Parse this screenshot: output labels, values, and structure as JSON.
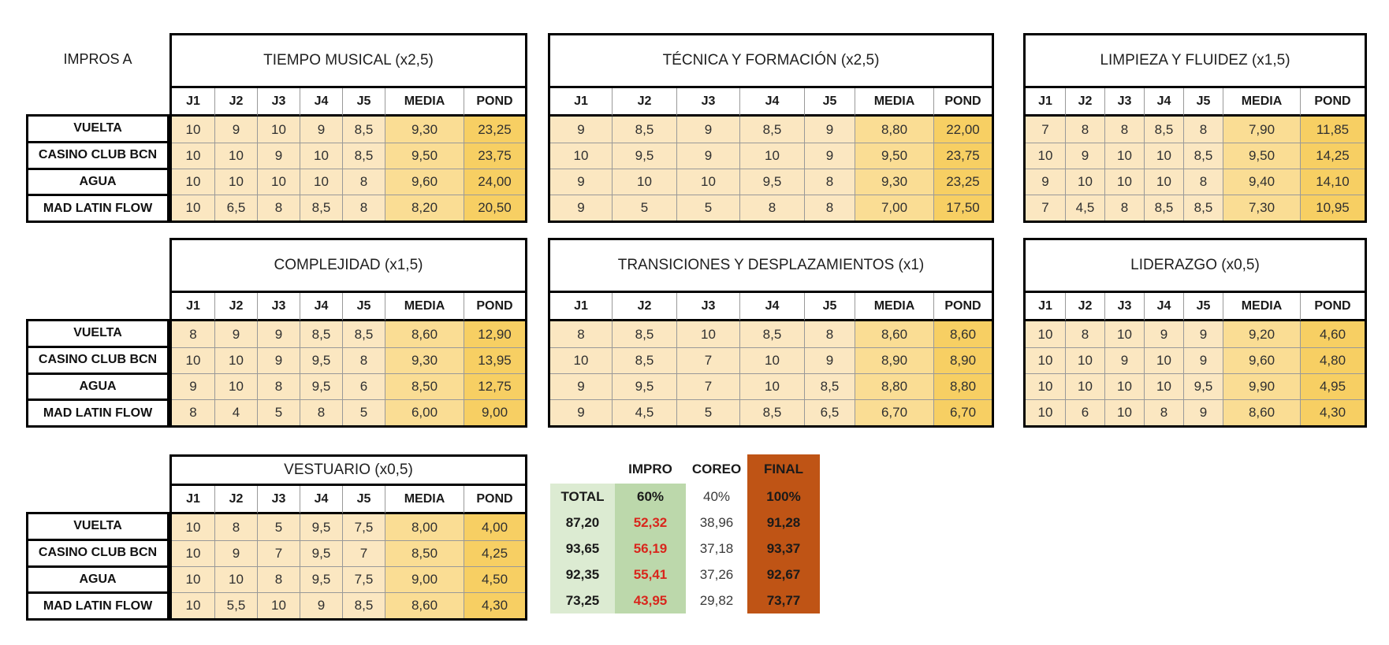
{
  "page_label": "IMPROS A",
  "judge_headers": [
    "J1",
    "J2",
    "J3",
    "J4",
    "J5",
    "MEDIA",
    "POND"
  ],
  "teams": [
    "VUELTA",
    "CASINO CLUB BCN",
    "AGUA",
    "MAD LATIN FLOW"
  ],
  "colors": {
    "cell_cream": "#fbe7c1",
    "cell_media": "#fadd94",
    "cell_pond": "#f7cf63",
    "green_light": "#dcebd2",
    "green_mid": "#bcd8ab",
    "orange": "#bf5415",
    "red_text": "#d9261c",
    "grid_line": "#999999"
  },
  "tables": [
    {
      "id": "tiempo-musical",
      "title": "TIEMPO MUSICAL (x2,5)",
      "rows": [
        {
          "scores": [
            "10",
            "9",
            "10",
            "9",
            "8,5"
          ],
          "media": "9,30",
          "pond": "23,25"
        },
        {
          "scores": [
            "10",
            "10",
            "9",
            "10",
            "8,5"
          ],
          "media": "9,50",
          "pond": "23,75"
        },
        {
          "scores": [
            "10",
            "10",
            "10",
            "10",
            "8"
          ],
          "media": "9,60",
          "pond": "24,00"
        },
        {
          "scores": [
            "10",
            "6,5",
            "8",
            "8,5",
            "8"
          ],
          "media": "8,20",
          "pond": "20,50"
        }
      ]
    },
    {
      "id": "tecnica-y-formacion",
      "title": "TÉCNICA Y FORMACIÓN (x2,5)",
      "rows": [
        {
          "scores": [
            "9",
            "8,5",
            "9",
            "8,5",
            "9"
          ],
          "media": "8,80",
          "pond": "22,00"
        },
        {
          "scores": [
            "10",
            "9,5",
            "9",
            "10",
            "9"
          ],
          "media": "9,50",
          "pond": "23,75"
        },
        {
          "scores": [
            "9",
            "10",
            "10",
            "9,5",
            "8"
          ],
          "media": "9,30",
          "pond": "23,25"
        },
        {
          "scores": [
            "9",
            "5",
            "5",
            "8",
            "8"
          ],
          "media": "7,00",
          "pond": "17,50"
        }
      ]
    },
    {
      "id": "limpieza-y-fluidez",
      "title": "LIMPIEZA Y FLUIDEZ (x1,5)",
      "rows": [
        {
          "scores": [
            "7",
            "8",
            "8",
            "8,5",
            "8"
          ],
          "media": "7,90",
          "pond": "11,85"
        },
        {
          "scores": [
            "10",
            "9",
            "10",
            "10",
            "8,5"
          ],
          "media": "9,50",
          "pond": "14,25"
        },
        {
          "scores": [
            "9",
            "10",
            "10",
            "10",
            "8"
          ],
          "media": "9,40",
          "pond": "14,10"
        },
        {
          "scores": [
            "7",
            "4,5",
            "8",
            "8,5",
            "8,5"
          ],
          "media": "7,30",
          "pond": "10,95"
        }
      ]
    },
    {
      "id": "complejidad",
      "title": "COMPLEJIDAD (x1,5)",
      "rows": [
        {
          "scores": [
            "8",
            "9",
            "9",
            "8,5",
            "8,5"
          ],
          "media": "8,60",
          "pond": "12,90"
        },
        {
          "scores": [
            "10",
            "10",
            "9",
            "9,5",
            "8"
          ],
          "media": "9,30",
          "pond": "13,95"
        },
        {
          "scores": [
            "9",
            "10",
            "8",
            "9,5",
            "6"
          ],
          "media": "8,50",
          "pond": "12,75"
        },
        {
          "scores": [
            "8",
            "4",
            "5",
            "8",
            "5"
          ],
          "media": "6,00",
          "pond": "9,00"
        }
      ]
    },
    {
      "id": "transiciones-y-desplazamientos",
      "title": "TRANSICIONES Y DESPLAZAMIENTOS (x1)",
      "rows": [
        {
          "scores": [
            "8",
            "8,5",
            "10",
            "8,5",
            "8"
          ],
          "media": "8,60",
          "pond": "8,60"
        },
        {
          "scores": [
            "10",
            "8,5",
            "7",
            "10",
            "9"
          ],
          "media": "8,90",
          "pond": "8,90"
        },
        {
          "scores": [
            "9",
            "9,5",
            "7",
            "10",
            "8,5"
          ],
          "media": "8,80",
          "pond": "8,80"
        },
        {
          "scores": [
            "9",
            "4,5",
            "5",
            "8,5",
            "6,5"
          ],
          "media": "6,70",
          "pond": "6,70"
        }
      ]
    },
    {
      "id": "liderazgo",
      "title": "LIDERAZGO (x0,5)",
      "rows": [
        {
          "scores": [
            "10",
            "8",
            "10",
            "9",
            "9"
          ],
          "media": "9,20",
          "pond": "4,60"
        },
        {
          "scores": [
            "10",
            "10",
            "9",
            "10",
            "9"
          ],
          "media": "9,60",
          "pond": "4,80"
        },
        {
          "scores": [
            "10",
            "10",
            "10",
            "10",
            "9,5"
          ],
          "media": "9,90",
          "pond": "4,95"
        },
        {
          "scores": [
            "10",
            "6",
            "10",
            "8",
            "9"
          ],
          "media": "8,60",
          "pond": "4,30"
        }
      ]
    },
    {
      "id": "vestuario",
      "title": "VESTUARIO (x0,5)",
      "rows": [
        {
          "scores": [
            "10",
            "8",
            "5",
            "9,5",
            "7,5"
          ],
          "media": "8,00",
          "pond": "4,00"
        },
        {
          "scores": [
            "10",
            "9",
            "7",
            "9,5",
            "7"
          ],
          "media": "8,50",
          "pond": "4,25"
        },
        {
          "scores": [
            "10",
            "10",
            "8",
            "9,5",
            "7,5"
          ],
          "media": "9,00",
          "pond": "4,50"
        },
        {
          "scores": [
            "10",
            "5,5",
            "10",
            "9",
            "8,5"
          ],
          "media": "8,60",
          "pond": "4,30"
        }
      ]
    }
  ],
  "summary": {
    "col_headers": [
      "",
      "IMPRO",
      "COREO",
      "FINAL"
    ],
    "sub_headers": [
      "TOTAL",
      "60%",
      "40%",
      "100%"
    ],
    "rows": [
      [
        "87,20",
        "52,32",
        "38,96",
        "91,28"
      ],
      [
        "93,65",
        "56,19",
        "37,18",
        "93,37"
      ],
      [
        "92,35",
        "55,41",
        "37,26",
        "92,67"
      ],
      [
        "73,25",
        "43,95",
        "29,82",
        "73,77"
      ]
    ]
  }
}
